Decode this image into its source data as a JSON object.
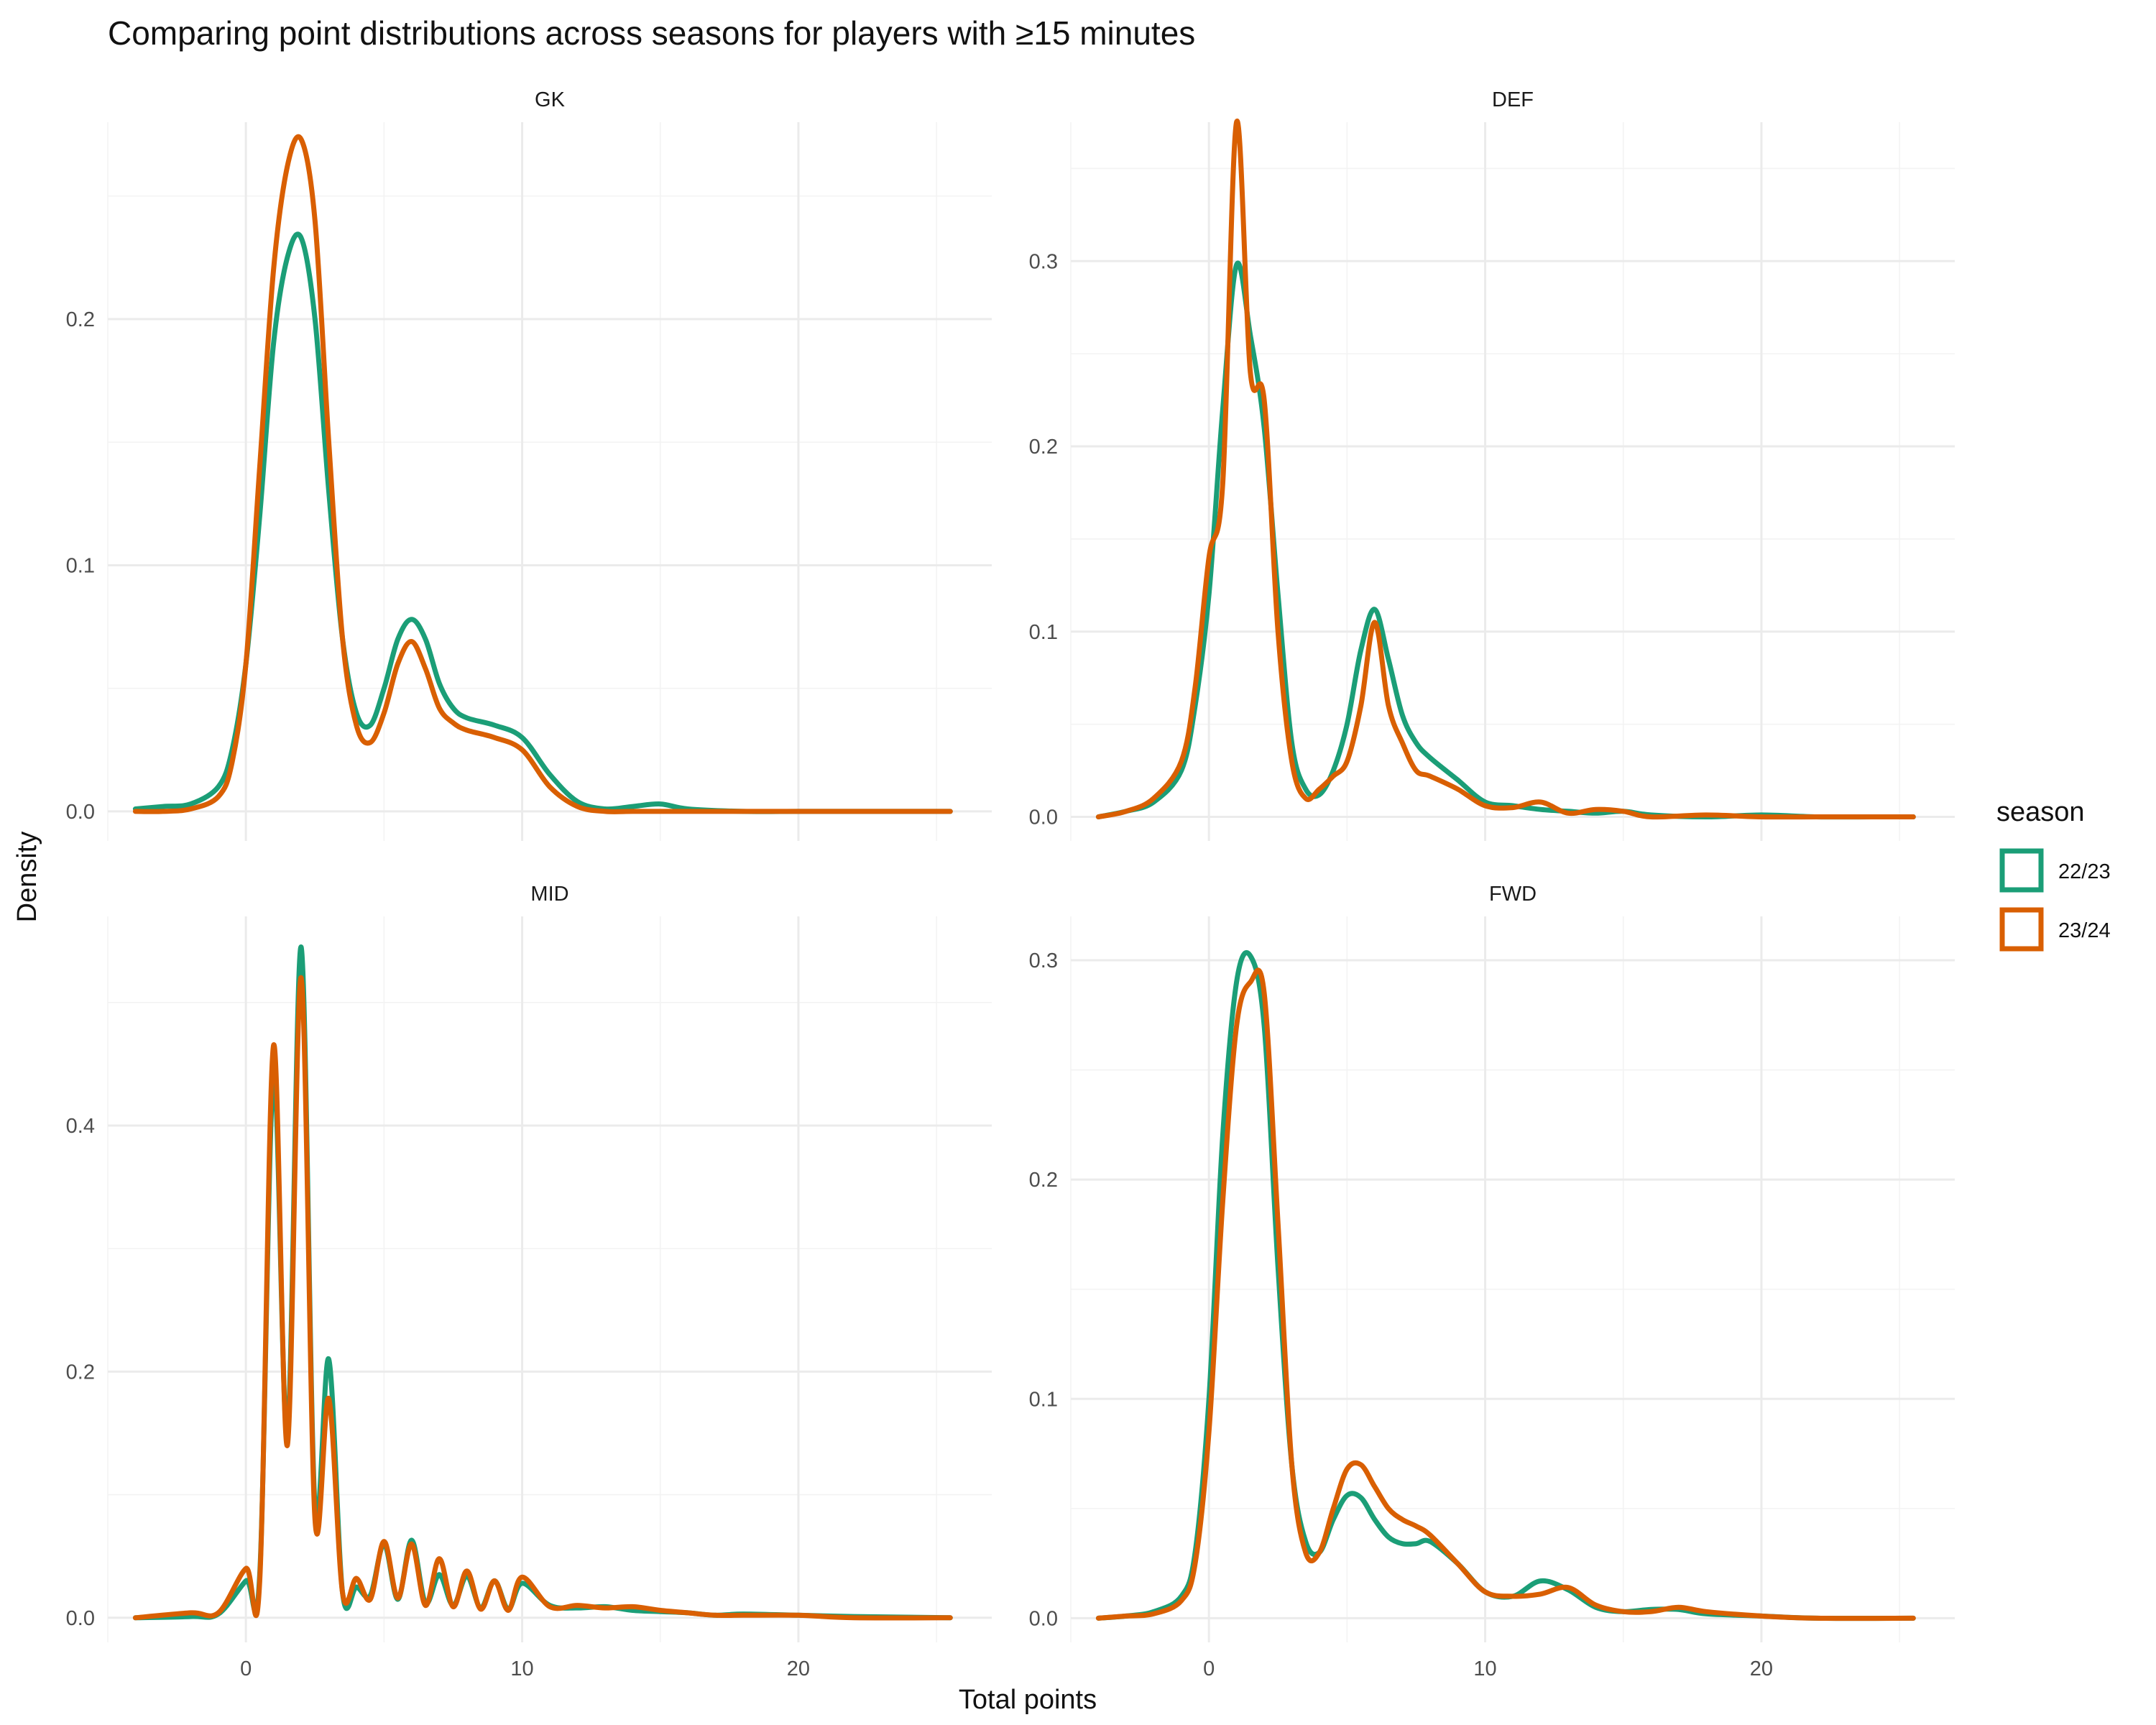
{
  "chart_data": {
    "type": "line",
    "kind": "density",
    "title": "Comparing point distributions across seasons for players with ≥15 minutes",
    "xlabel": "Total points",
    "ylabel": "Density",
    "grid": true,
    "facet_layout": "2x2",
    "x_ticks": [
      0,
      10,
      20
    ],
    "xlim": [
      -5,
      27
    ],
    "legend": {
      "title": "season",
      "position": "right",
      "entries": [
        {
          "label": "22/23",
          "color": "#1b9e77"
        },
        {
          "label": "23/24",
          "color": "#d95f02"
        }
      ]
    },
    "panels": [
      {
        "strip": "GK",
        "ylim": [
          -0.012,
          0.28
        ],
        "y_ticks": [
          0.0,
          0.1,
          0.2
        ],
        "series": [
          {
            "name": "22/23",
            "color": "#1b9e77",
            "x": [
              -4,
              -3,
              -2,
              -1,
              -0.5,
              0,
              0.5,
              1,
              1.5,
              2,
              2.5,
              3,
              3.5,
              4,
              4.5,
              5,
              5.5,
              6,
              6.5,
              7,
              7.5,
              8,
              9,
              10,
              11,
              12,
              13,
              14,
              15,
              16,
              18,
              20,
              22,
              24,
              25.5
            ],
            "y": [
              0.001,
              0.002,
              0.003,
              0.01,
              0.025,
              0.06,
              0.12,
              0.19,
              0.225,
              0.233,
              0.2,
              0.13,
              0.07,
              0.04,
              0.035,
              0.05,
              0.07,
              0.078,
              0.07,
              0.052,
              0.042,
              0.038,
              0.035,
              0.03,
              0.015,
              0.004,
              0.001,
              0.002,
              0.003,
              0.001,
              0.0,
              0.0,
              0.0,
              0.0,
              0.0
            ]
          },
          {
            "name": "23/24",
            "color": "#d95f02",
            "x": [
              -4,
              -3,
              -2,
              -1,
              -0.5,
              0,
              0.5,
              1,
              1.5,
              2,
              2.5,
              3,
              3.5,
              4,
              4.5,
              5,
              5.5,
              6,
              6.5,
              7,
              7.5,
              8,
              9,
              10,
              11,
              12,
              13,
              14,
              15,
              16,
              18,
              20,
              22,
              24,
              25.5
            ],
            "y": [
              0.0,
              0.0,
              0.001,
              0.006,
              0.02,
              0.06,
              0.14,
              0.22,
              0.262,
              0.273,
              0.24,
              0.15,
              0.07,
              0.035,
              0.028,
              0.04,
              0.06,
              0.069,
              0.058,
              0.042,
              0.036,
              0.033,
              0.03,
              0.025,
              0.01,
              0.002,
              0.0,
              0.0,
              0.0,
              0.0,
              0.0,
              0.0,
              0.0,
              0.0,
              0.0
            ]
          }
        ]
      },
      {
        "strip": "DEF",
        "ylim": [
          -0.013,
          0.375
        ],
        "y_ticks": [
          0.0,
          0.1,
          0.2,
          0.3
        ],
        "series": [
          {
            "name": "22/23",
            "color": "#1b9e77",
            "x": [
              -4,
              -3,
              -2,
              -1,
              -0.5,
              0,
              0.5,
              1,
              1.5,
              2,
              2.5,
              3,
              3.5,
              4,
              4.5,
              5,
              5.5,
              6,
              6.5,
              7,
              7.5,
              8,
              9,
              10,
              11,
              12,
              13,
              14,
              15,
              16,
              18,
              20,
              22,
              24,
              25.5
            ],
            "y": [
              0.0,
              0.003,
              0.008,
              0.025,
              0.06,
              0.12,
              0.22,
              0.298,
              0.26,
              0.21,
              0.12,
              0.04,
              0.015,
              0.012,
              0.025,
              0.05,
              0.09,
              0.112,
              0.085,
              0.055,
              0.04,
              0.032,
              0.02,
              0.008,
              0.006,
              0.004,
              0.003,
              0.002,
              0.003,
              0.001,
              0.0,
              0.001,
              0.0,
              0.0,
              0.0
            ]
          },
          {
            "name": "23/24",
            "color": "#d95f02",
            "x": [
              -4,
              -3,
              -2,
              -1,
              -0.5,
              0,
              0.5,
              1,
              1.5,
              2,
              2.5,
              3,
              3.5,
              4,
              4.5,
              5,
              5.5,
              6,
              6.5,
              7,
              7.5,
              8,
              9,
              10,
              11,
              12,
              13,
              14,
              15,
              16,
              18,
              20,
              22,
              24,
              25.5
            ],
            "y": [
              0.0,
              0.003,
              0.01,
              0.03,
              0.07,
              0.14,
              0.18,
              0.375,
              0.24,
              0.225,
              0.1,
              0.03,
              0.01,
              0.015,
              0.022,
              0.03,
              0.06,
              0.105,
              0.06,
              0.04,
              0.025,
              0.022,
              0.015,
              0.006,
              0.005,
              0.008,
              0.002,
              0.004,
              0.003,
              0.0,
              0.001,
              0.0,
              0.0,
              0.0,
              0.0
            ]
          }
        ]
      },
      {
        "strip": "MID",
        "ylim": [
          -0.02,
          0.57
        ],
        "y_ticks": [
          0.0,
          0.2,
          0.4
        ],
        "series": [
          {
            "name": "22/23",
            "color": "#1b9e77",
            "x": [
              -4,
              -2,
              -1,
              0,
              0.5,
              1,
              1.5,
              2,
              2.5,
              3,
              3.5,
              4,
              4.5,
              5,
              5.5,
              6,
              6.5,
              7,
              7.5,
              8,
              8.5,
              9,
              9.5,
              10,
              11,
              12,
              13,
              14,
              15,
              16,
              17,
              18,
              20,
              22,
              25.5
            ],
            "y": [
              0.0,
              0.001,
              0.003,
              0.03,
              0.035,
              0.44,
              0.15,
              0.545,
              0.09,
              0.21,
              0.02,
              0.025,
              0.018,
              0.06,
              0.015,
              0.063,
              0.012,
              0.035,
              0.01,
              0.034,
              0.008,
              0.03,
              0.007,
              0.028,
              0.01,
              0.008,
              0.009,
              0.006,
              0.005,
              0.004,
              0.002,
              0.003,
              0.002,
              0.001,
              0.0
            ]
          },
          {
            "name": "23/24",
            "color": "#d95f02",
            "x": [
              -4,
              -2,
              -1,
              0,
              0.5,
              1,
              1.5,
              2,
              2.5,
              3,
              3.5,
              4,
              4.5,
              5,
              5.5,
              6,
              6.5,
              7,
              7.5,
              8,
              8.5,
              9,
              9.5,
              10,
              11,
              12,
              13,
              14,
              15,
              16,
              17,
              18,
              20,
              22,
              25.5
            ],
            "y": [
              0.0,
              0.004,
              0.004,
              0.04,
              0.03,
              0.465,
              0.14,
              0.52,
              0.08,
              0.178,
              0.02,
              0.032,
              0.015,
              0.062,
              0.016,
              0.06,
              0.01,
              0.048,
              0.009,
              0.038,
              0.007,
              0.03,
              0.006,
              0.033,
              0.009,
              0.01,
              0.008,
              0.009,
              0.006,
              0.004,
              0.002,
              0.002,
              0.002,
              0.0,
              0.0
            ]
          }
        ]
      },
      {
        "strip": "FWD",
        "ylim": [
          -0.011,
          0.32
        ],
        "y_ticks": [
          0.0,
          0.1,
          0.2,
          0.3
        ],
        "series": [
          {
            "name": "22/23",
            "color": "#1b9e77",
            "x": [
              -4,
              -3,
              -2,
              -1,
              -0.5,
              0,
              0.5,
              1,
              1.5,
              2,
              2.5,
              3,
              3.5,
              4,
              4.5,
              5,
              5.5,
              6,
              6.5,
              7,
              7.5,
              8,
              9,
              10,
              11,
              12,
              13,
              14,
              15,
              16,
              17,
              18,
              20,
              22,
              25.5
            ],
            "y": [
              0.0,
              0.001,
              0.003,
              0.01,
              0.03,
              0.1,
              0.22,
              0.29,
              0.302,
              0.27,
              0.16,
              0.07,
              0.035,
              0.03,
              0.045,
              0.056,
              0.055,
              0.045,
              0.037,
              0.034,
              0.034,
              0.035,
              0.025,
              0.012,
              0.01,
              0.017,
              0.013,
              0.005,
              0.003,
              0.004,
              0.004,
              0.002,
              0.001,
              0.0,
              0.0
            ]
          },
          {
            "name": "23/24",
            "color": "#d95f02",
            "x": [
              -4,
              -3,
              -2,
              -1,
              -0.5,
              0,
              0.5,
              1,
              1.5,
              2,
              2.5,
              3,
              3.5,
              4,
              4.5,
              5,
              5.5,
              6,
              6.5,
              7,
              7.5,
              8,
              9,
              10,
              11,
              12,
              13,
              14,
              15,
              16,
              17,
              18,
              20,
              22,
              25.5
            ],
            "y": [
              0.0,
              0.001,
              0.002,
              0.008,
              0.025,
              0.085,
              0.19,
              0.27,
              0.29,
              0.285,
              0.18,
              0.07,
              0.03,
              0.03,
              0.05,
              0.068,
              0.07,
              0.06,
              0.05,
              0.045,
              0.042,
              0.038,
              0.025,
              0.012,
              0.01,
              0.011,
              0.014,
              0.006,
              0.003,
              0.003,
              0.005,
              0.003,
              0.001,
              0.0,
              0.0
            ]
          }
        ]
      }
    ]
  }
}
